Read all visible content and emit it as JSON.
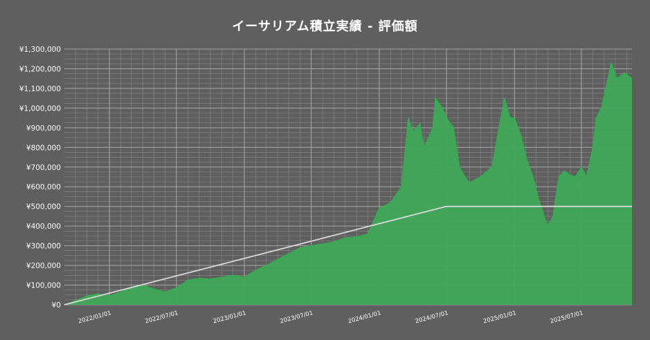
{
  "chart_data": {
    "type": "area",
    "title": "イーサリアム積立実績 - 評価額",
    "xlabel": "",
    "ylabel": "",
    "x_range": [
      "2021-09-01",
      "2025-11-15"
    ],
    "ylim": [
      0,
      1300000
    ],
    "yticks": [
      0,
      100000,
      200000,
      300000,
      400000,
      500000,
      600000,
      700000,
      800000,
      900000,
      1000000,
      1100000,
      1200000,
      1300000
    ],
    "ytick_labels": [
      "¥0",
      "¥100,000",
      "¥200,000",
      "¥300,000",
      "¥400,000",
      "¥500,000",
      "¥600,000",
      "¥700,000",
      "¥800,000",
      "¥900,000",
      "¥1,000,000",
      "¥1,100,000",
      "¥1,200,000",
      "¥1,300,000"
    ],
    "xticks": [
      "2022-01-01",
      "2022-07-01",
      "2023-01-01",
      "2023-07-01",
      "2024-01-01",
      "2024-07-01",
      "2025-01-01",
      "2025-07-01"
    ],
    "xtick_labels": [
      "2022/01/01",
      "2022/07/01",
      "2023/01/01",
      "2023/07/01",
      "2024/01/01",
      "2024/07/01",
      "2025/01/01",
      "2025/07/01"
    ],
    "grid": true,
    "colors": {
      "background": "#5f5f5f",
      "grid_major": "#a8a8a8",
      "grid_minor": "#8a8a8a",
      "area_fill": "#3fa858",
      "area_line": "#2fb04c",
      "cost_line": "#d9d9d9"
    },
    "series": [
      {
        "kind": "area",
        "x": [
          "2021-09-01",
          "2021-10-01",
          "2021-11-01",
          "2021-12-01",
          "2022-01-01",
          "2022-02-01",
          "2022-03-01",
          "2022-04-01",
          "2022-05-01",
          "2022-06-01",
          "2022-07-01",
          "2022-08-01",
          "2022-09-01",
          "2022-10-01",
          "2022-11-01",
          "2022-12-01",
          "2023-01-01",
          "2023-02-01",
          "2023-03-01",
          "2023-04-01",
          "2023-05-01",
          "2023-06-01",
          "2023-07-01",
          "2023-08-01",
          "2023-09-01",
          "2023-10-01",
          "2023-11-01",
          "2023-12-01",
          "2024-01-01",
          "2024-02-01",
          "2024-03-01",
          "2024-03-20",
          "2024-04-01",
          "2024-04-20",
          "2024-05-01",
          "2024-05-25",
          "2024-06-01",
          "2024-06-20",
          "2024-07-01",
          "2024-07-20",
          "2024-08-05",
          "2024-08-20",
          "2024-09-01",
          "2024-10-01",
          "2024-11-01",
          "2024-11-20",
          "2024-12-05",
          "2024-12-20",
          "2025-01-01",
          "2025-01-20",
          "2025-02-01",
          "2025-02-20",
          "2025-03-10",
          "2025-04-01",
          "2025-04-15",
          "2025-05-01",
          "2025-05-15",
          "2025-06-01",
          "2025-06-15",
          "2025-07-01",
          "2025-07-15",
          "2025-08-01",
          "2025-08-10",
          "2025-08-24",
          "2025-09-05",
          "2025-09-20",
          "2025-10-05",
          "2025-10-25",
          "2025-11-15"
        ],
        "values": [
          0,
          20000,
          45000,
          55000,
          45000,
          65000,
          90000,
          100000,
          80000,
          65000,
          85000,
          125000,
          135000,
          130000,
          140000,
          150000,
          140000,
          175000,
          200000,
          230000,
          260000,
          290000,
          300000,
          310000,
          320000,
          340000,
          345000,
          360000,
          490000,
          520000,
          600000,
          950000,
          880000,
          920000,
          800000,
          900000,
          1050000,
          1000000,
          950000,
          900000,
          700000,
          650000,
          620000,
          650000,
          700000,
          900000,
          1050000,
          950000,
          950000,
          850000,
          750000,
          650000,
          520000,
          400000,
          450000,
          650000,
          680000,
          660000,
          650000,
          700000,
          650000,
          800000,
          950000,
          1000000,
          1100000,
          1230000,
          1150000,
          1180000,
          1150000
        ]
      },
      {
        "kind": "line",
        "x": [
          "2021-09-01",
          "2024-06-30",
          "2025-11-15"
        ],
        "values": [
          0,
          500000,
          500000
        ]
      }
    ]
  }
}
